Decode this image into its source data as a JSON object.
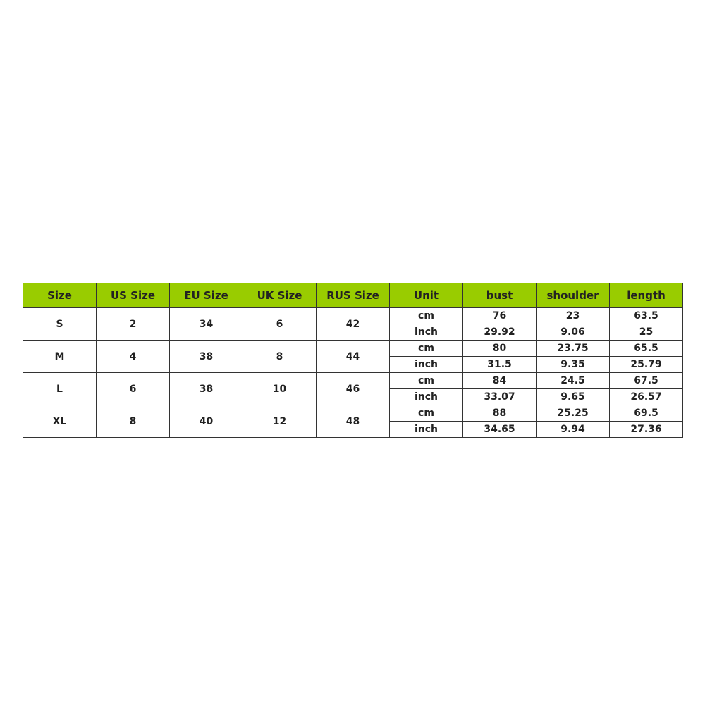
{
  "colors": {
    "header_bg": "#99cc00",
    "border": "#333333"
  },
  "table": {
    "headers": [
      "Size",
      "US Size",
      "EU Size",
      "UK Size",
      "RUS Size",
      "Unit",
      "bust",
      "shoulder",
      "length"
    ],
    "rows": [
      {
        "size": "S",
        "us": "2",
        "eu": "34",
        "uk": "6",
        "rus": "42",
        "units": [
          {
            "unit": "cm",
            "bust": "76",
            "shoulder": "23",
            "length": "63.5"
          },
          {
            "unit": "inch",
            "bust": "29.92",
            "shoulder": "9.06",
            "length": "25"
          }
        ]
      },
      {
        "size": "M",
        "us": "4",
        "eu": "38",
        "uk": "8",
        "rus": "44",
        "units": [
          {
            "unit": "cm",
            "bust": "80",
            "shoulder": "23.75",
            "length": "65.5"
          },
          {
            "unit": "inch",
            "bust": "31.5",
            "shoulder": "9.35",
            "length": "25.79"
          }
        ]
      },
      {
        "size": "L",
        "us": "6",
        "eu": "38",
        "uk": "10",
        "rus": "46",
        "units": [
          {
            "unit": "cm",
            "bust": "84",
            "shoulder": "24.5",
            "length": "67.5"
          },
          {
            "unit": "inch",
            "bust": "33.07",
            "shoulder": "9.65",
            "length": "26.57"
          }
        ]
      },
      {
        "size": "XL",
        "us": "8",
        "eu": "40",
        "uk": "12",
        "rus": "48",
        "units": [
          {
            "unit": "cm",
            "bust": "88",
            "shoulder": "25.25",
            "length": "69.5"
          },
          {
            "unit": "inch",
            "bust": "34.65",
            "shoulder": "9.94",
            "length": "27.36"
          }
        ]
      }
    ]
  }
}
